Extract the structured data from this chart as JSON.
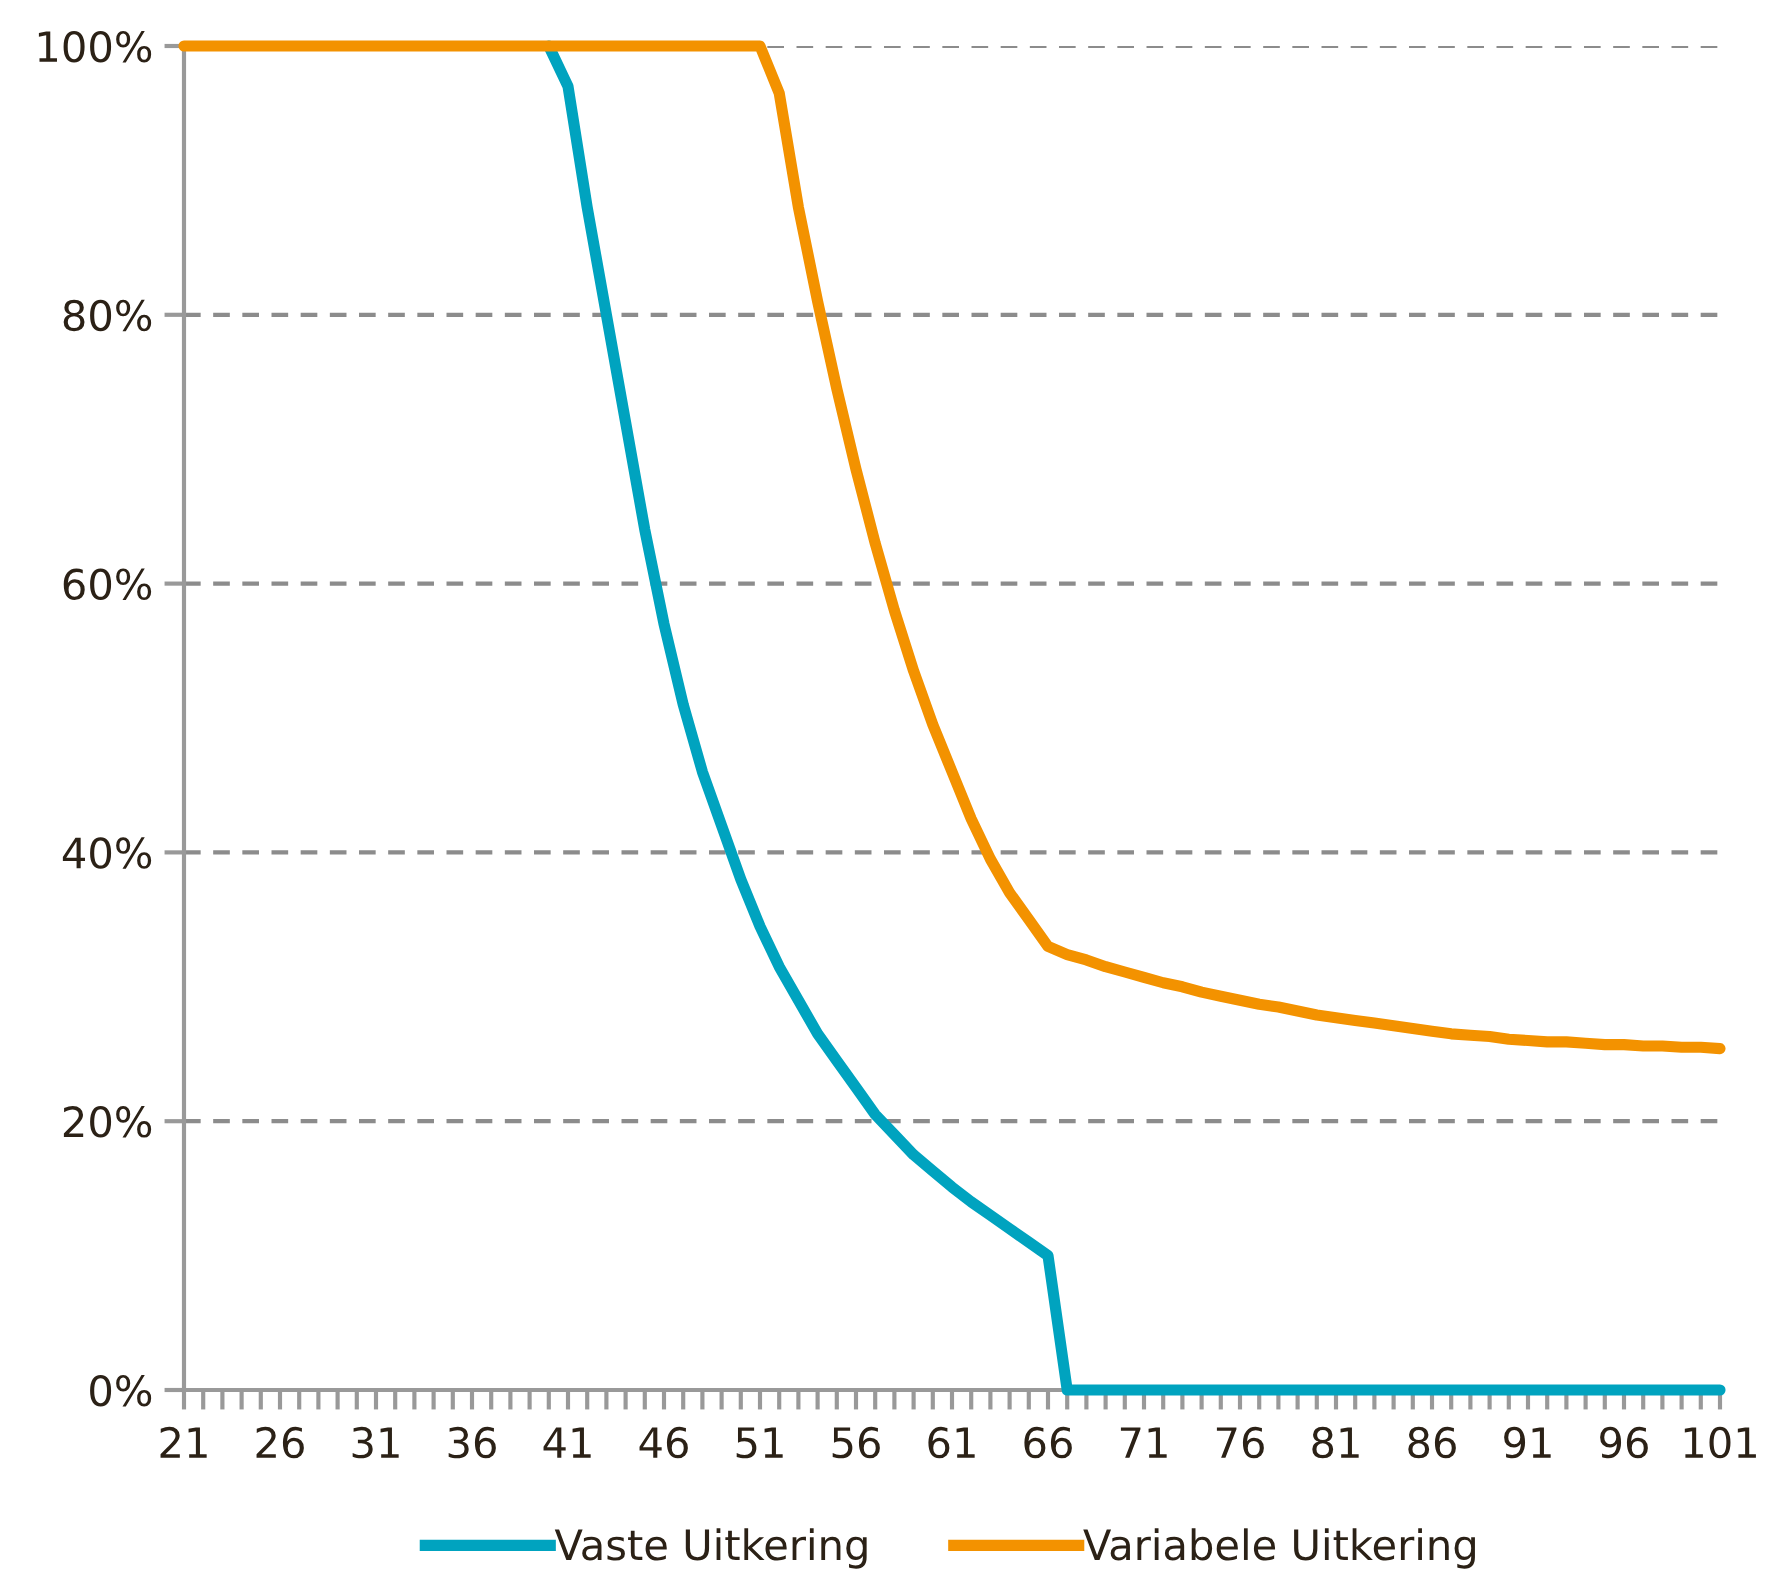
{
  "chart_data": {
    "type": "line",
    "x": [
      21,
      22,
      23,
      24,
      25,
      26,
      27,
      28,
      29,
      30,
      31,
      32,
      33,
      34,
      35,
      36,
      37,
      38,
      39,
      40,
      41,
      42,
      43,
      44,
      45,
      46,
      47,
      48,
      49,
      50,
      51,
      52,
      53,
      54,
      55,
      56,
      57,
      58,
      59,
      60,
      61,
      62,
      63,
      64,
      65,
      66,
      67,
      68,
      69,
      70,
      71,
      72,
      73,
      74,
      75,
      76,
      77,
      78,
      79,
      80,
      81,
      82,
      83,
      84,
      85,
      86,
      87,
      88,
      89,
      90,
      91,
      92,
      93,
      94,
      95,
      96,
      97,
      98,
      99,
      100,
      101
    ],
    "series": [
      {
        "name": "Vaste Uitkering",
        "color": "#00a3bf",
        "values": [
          null,
          null,
          null,
          null,
          null,
          null,
          null,
          null,
          null,
          null,
          null,
          null,
          null,
          null,
          null,
          null,
          null,
          null,
          null,
          100,
          97,
          88,
          80,
          72,
          64,
          57,
          51,
          46,
          42,
          38,
          34.5,
          31.5,
          29,
          26.5,
          24.5,
          22.5,
          20.5,
          19,
          17.5,
          16.3,
          15.1,
          14,
          13,
          12,
          11,
          10,
          0,
          0,
          0,
          0,
          0,
          0,
          0,
          0,
          0,
          0,
          0,
          0,
          0,
          0,
          0,
          0,
          0,
          0,
          0,
          0,
          0,
          0,
          0,
          0,
          0,
          0,
          0,
          0,
          0,
          0,
          0,
          0,
          0,
          0,
          0
        ]
      },
      {
        "name": "Variabele Uitkering",
        "color": "#f39200",
        "values": [
          100,
          100,
          100,
          100,
          100,
          100,
          100,
          100,
          100,
          100,
          100,
          100,
          100,
          100,
          100,
          100,
          100,
          100,
          100,
          100,
          100,
          100,
          100,
          100,
          100,
          100,
          100,
          100,
          100,
          100,
          100,
          96.5,
          88,
          81,
          74.5,
          68.5,
          63,
          58,
          53.5,
          49.5,
          46,
          42.5,
          39.5,
          37,
          35,
          33,
          32.4,
          32,
          31.5,
          31.1,
          30.7,
          30.3,
          30,
          29.6,
          29.3,
          29,
          28.7,
          28.5,
          28.2,
          27.9,
          27.7,
          27.5,
          27.3,
          27.1,
          26.9,
          26.7,
          26.5,
          26.4,
          26.3,
          26.1,
          26,
          25.9,
          25.9,
          25.8,
          25.7,
          25.7,
          25.6,
          25.6,
          25.5,
          25.5,
          25.4
        ]
      }
    ],
    "xlim": [
      21,
      101
    ],
    "xticks": [
      21,
      {
        "value": 22,
        "label": null
      },
      {
        "value": 23,
        "label": null
      },
      {
        "value": 24,
        "label": null
      },
      {
        "value": 25,
        "label": null
      },
      26,
      {
        "value": 27,
        "label": null
      },
      {
        "value": 28,
        "label": null
      },
      {
        "value": 29,
        "label": null
      },
      {
        "value": 30,
        "label": null
      },
      31,
      {
        "value": 32,
        "label": null
      },
      {
        "value": 33,
        "label": null
      },
      {
        "value": 34,
        "label": null
      },
      {
        "value": 35,
        "label": null
      },
      36,
      {
        "value": 37,
        "label": null
      },
      {
        "value": 38,
        "label": null
      },
      {
        "value": 39,
        "label": null
      },
      {
        "value": 40,
        "label": null
      },
      41,
      {
        "value": 42,
        "label": null
      },
      {
        "value": 43,
        "label": null
      },
      {
        "value": 44,
        "label": null
      },
      {
        "value": 45,
        "label": null
      },
      46,
      {
        "value": 47,
        "label": null
      },
      {
        "value": 48,
        "label": null
      },
      {
        "value": 49,
        "label": null
      },
      {
        "value": 50,
        "label": null
      },
      51,
      {
        "value": 52,
        "label": null
      },
      {
        "value": 53,
        "label": null
      },
      {
        "value": 54,
        "label": null
      },
      {
        "value": 55,
        "label": null
      },
      56,
      {
        "value": 57,
        "label": null
      },
      {
        "value": 58,
        "label": null
      },
      {
        "value": 59,
        "label": null
      },
      {
        "value": 60,
        "label": null
      },
      61,
      {
        "value": 62,
        "label": null
      },
      {
        "value": 63,
        "label": null
      },
      {
        "value": 64,
        "label": null
      },
      {
        "value": 65,
        "label": null
      },
      66,
      {
        "value": 67,
        "label": null
      },
      {
        "value": 68,
        "label": null
      },
      {
        "value": 69,
        "label": null
      },
      {
        "value": 70,
        "label": null
      },
      71,
      {
        "value": 72,
        "label": null
      },
      {
        "value": 73,
        "label": null
      },
      {
        "value": 74,
        "label": null
      },
      {
        "value": 75,
        "label": null
      },
      76,
      {
        "value": 77,
        "label": null
      },
      {
        "value": 78,
        "label": null
      },
      {
        "value": 79,
        "label": null
      },
      {
        "value": 80,
        "label": null
      },
      81,
      {
        "value": 82,
        "label": null
      },
      {
        "value": 83,
        "label": null
      },
      {
        "value": 84,
        "label": null
      },
      {
        "value": 85,
        "label": null
      },
      86,
      {
        "value": 87,
        "label": null
      },
      {
        "value": 88,
        "label": null
      },
      {
        "value": 89,
        "label": null
      },
      {
        "value": 90,
        "label": null
      },
      91,
      {
        "value": 92,
        "label": null
      },
      {
        "value": 93,
        "label": null
      },
      {
        "value": 94,
        "label": null
      },
      {
        "value": 95,
        "label": null
      },
      96,
      {
        "value": 97,
        "label": null
      },
      {
        "value": 98,
        "label": null
      },
      {
        "value": 99,
        "label": null
      },
      {
        "value": 100,
        "label": null
      },
      101
    ],
    "ylim": [
      0,
      100
    ],
    "yticks": [
      {
        "value": 0,
        "label": "0%"
      },
      {
        "value": 20,
        "label": "20%"
      },
      {
        "value": 40,
        "label": "40%"
      },
      {
        "value": 60,
        "label": "60%"
      },
      {
        "value": 80,
        "label": "80%"
      },
      {
        "value": 100,
        "label": "100%"
      }
    ],
    "grid": "y",
    "legend": "bottom",
    "marker": "none",
    "line_style": "solid"
  }
}
